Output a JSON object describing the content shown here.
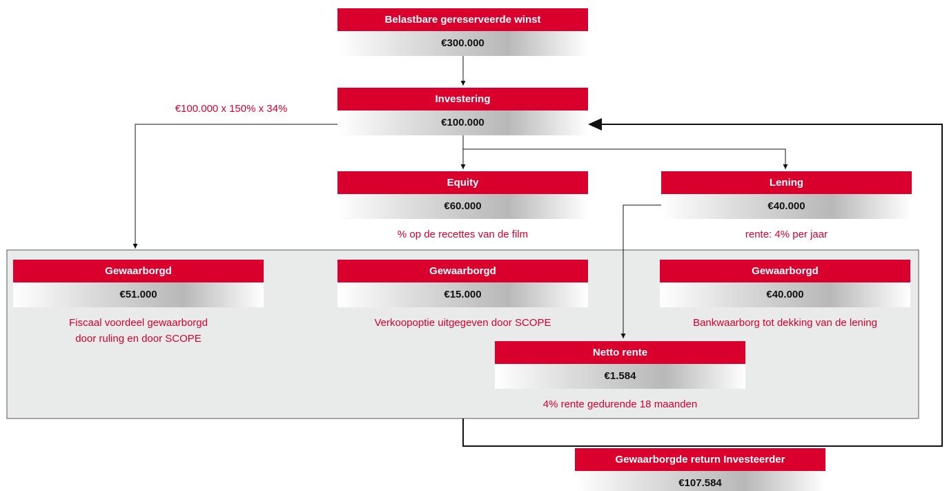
{
  "annotation": "€100.000 x 150% x 34%",
  "nodes": [
    {
      "title": "Belastbare gereserveerde winst",
      "value": "€300.000"
    },
    {
      "title": "Investering",
      "value": "€100.000"
    },
    {
      "title": "Equity",
      "value": "€60.000",
      "note": [
        "% op de recettes van de film"
      ]
    },
    {
      "title": "Lening",
      "value": "€40.000",
      "note": [
        "rente: 4% per jaar"
      ]
    },
    {
      "title": "Gewaarborgd",
      "value": "€51.000",
      "note": [
        "Fiscaal voordeel gewaarborgd",
        "door ruling en door SCOPE"
      ]
    },
    {
      "title": "Gewaarborgd",
      "value": "€15.000",
      "note": [
        "Verkoopoptie uitgegeven door SCOPE"
      ]
    },
    {
      "title": "Gewaarborgd",
      "value": "€40.000",
      "note": [
        "Bankwaarborg tot dekking van de lening"
      ]
    },
    {
      "title": "Netto rente",
      "value": "€1.584",
      "note": [
        "4% rente gedurende 18 maanden"
      ]
    },
    {
      "title": "Gewaarborgde return Investeerder",
      "value": "€107.584"
    }
  ]
}
